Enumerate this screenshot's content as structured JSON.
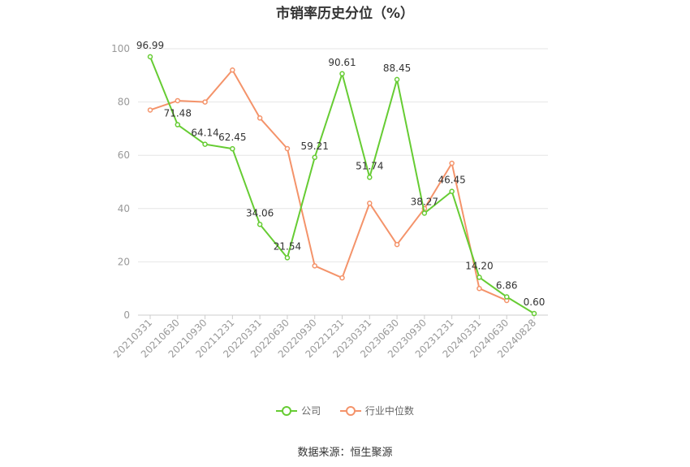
{
  "chart_data": {
    "type": "line",
    "title": "市销率历史分位（%）",
    "categories": [
      "20210331",
      "20210630",
      "20210930",
      "20211231",
      "20220331",
      "20220630",
      "20220930",
      "20221231",
      "20230331",
      "20230630",
      "20230930",
      "20231231",
      "20240331",
      "20240630",
      "20240828"
    ],
    "series": [
      {
        "name": "公司",
        "color": "#66cc33",
        "values": [
          96.99,
          71.48,
          64.14,
          62.45,
          34.06,
          21.54,
          59.21,
          90.61,
          51.74,
          88.45,
          38.27,
          46.45,
          14.2,
          6.86,
          0.6
        ],
        "labels": [
          "96.99",
          "71.48",
          "64.14",
          "62.45",
          "34.06",
          "21.54",
          "59.21",
          "90.61",
          "51.74",
          "88.45",
          "38.27",
          "46.45",
          "14.20",
          "6.86",
          "0.60"
        ]
      },
      {
        "name": "行业中位数",
        "color": "#f4936a",
        "values": [
          77,
          80.5,
          80,
          92,
          74,
          62.5,
          18.5,
          14,
          42,
          26.5,
          40,
          57,
          10,
          5.5,
          null
        ]
      }
    ],
    "y_ticks": [
      0,
      20,
      40,
      60,
      80,
      100
    ],
    "ylim": [
      0,
      100
    ],
    "grid": true,
    "legend": "bottom-center",
    "source": "数据来源：恒生聚源"
  }
}
